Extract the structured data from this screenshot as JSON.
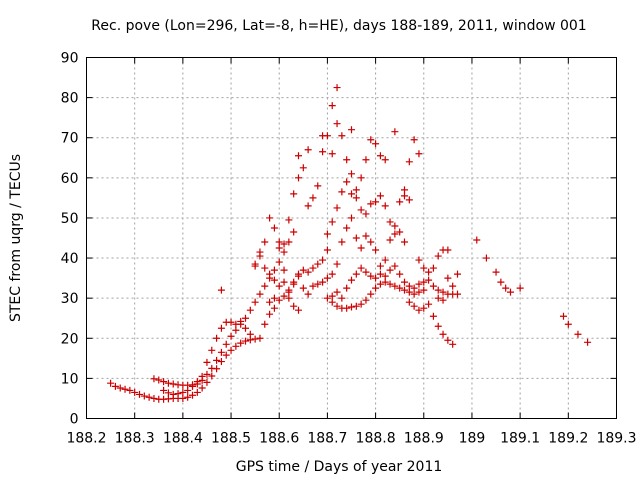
{
  "chart_data": {
    "type": "scatter",
    "title": "Rec. pove (Lon=296, Lat=-8, h=HE), days 188-189, 2011, window 001",
    "xlabel": "GPS time / Days of year 2011",
    "ylabel": "STEC from uqrg / TECUs",
    "xlim": [
      188.2,
      189.3
    ],
    "ylim": [
      0,
      90
    ],
    "xticks": [
      188.2,
      188.3,
      188.4,
      188.5,
      188.6,
      188.7,
      188.8,
      188.9,
      189.0,
      189.1,
      189.2,
      189.3
    ],
    "xtick_labels": [
      "188.2",
      "188.3",
      "188.4",
      "188.5",
      "188.6",
      "188.7",
      "188.8",
      "188.9",
      "189",
      "189.1",
      "189.2",
      "189.3"
    ],
    "yticks": [
      0,
      10,
      20,
      30,
      40,
      50,
      60,
      70,
      80,
      90
    ],
    "ytick_labels": [
      "0",
      "10",
      "20",
      "30",
      "40",
      "50",
      "60",
      "70",
      "80",
      "90"
    ],
    "grid": true,
    "legend": "none",
    "marker": "plus",
    "color": "#cc0000",
    "points": [
      [
        188.25,
        8.8
      ],
      [
        188.26,
        8.0
      ],
      [
        188.27,
        7.6
      ],
      [
        188.28,
        7.3
      ],
      [
        188.29,
        7.0
      ],
      [
        188.3,
        6.5
      ],
      [
        188.31,
        6.0
      ],
      [
        188.32,
        5.6
      ],
      [
        188.33,
        5.3
      ],
      [
        188.34,
        5.0
      ],
      [
        188.35,
        4.8
      ],
      [
        188.36,
        4.8
      ],
      [
        188.37,
        4.9
      ],
      [
        188.38,
        5.0
      ],
      [
        188.39,
        5.0
      ],
      [
        188.4,
        5.0
      ],
      [
        188.41,
        5.3
      ],
      [
        188.42,
        5.8
      ],
      [
        188.43,
        6.5
      ],
      [
        188.44,
        7.6
      ],
      [
        188.45,
        9.0
      ],
      [
        188.46,
        10.6
      ],
      [
        188.47,
        12.4
      ],
      [
        188.48,
        14.2
      ],
      [
        188.49,
        15.8
      ],
      [
        188.5,
        17.0
      ],
      [
        188.51,
        18.0
      ],
      [
        188.52,
        18.8
      ],
      [
        188.53,
        19.3
      ],
      [
        188.54,
        19.6
      ],
      [
        188.55,
        19.8
      ],
      [
        188.56,
        20.0
      ],
      [
        188.34,
        9.9
      ],
      [
        188.35,
        9.6
      ],
      [
        188.36,
        9.2
      ],
      [
        188.37,
        8.8
      ],
      [
        188.38,
        8.6
      ],
      [
        188.39,
        8.4
      ],
      [
        188.4,
        8.3
      ],
      [
        188.41,
        8.3
      ],
      [
        188.42,
        8.4
      ],
      [
        188.43,
        8.6
      ],
      [
        188.44,
        9.5
      ],
      [
        188.45,
        11.0
      ],
      [
        188.46,
        12.5
      ],
      [
        188.47,
        14.5
      ],
      [
        188.48,
        16.5
      ],
      [
        188.49,
        18.5
      ],
      [
        188.5,
        20.5
      ],
      [
        188.51,
        22.0
      ],
      [
        188.52,
        23.5
      ],
      [
        188.53,
        25.0
      ],
      [
        188.54,
        27.0
      ],
      [
        188.55,
        29.0
      ],
      [
        188.56,
        31.0
      ],
      [
        188.57,
        33.0
      ],
      [
        188.58,
        35.0
      ],
      [
        188.59,
        37.0
      ],
      [
        188.6,
        39.0
      ],
      [
        188.61,
        41.5
      ],
      [
        188.62,
        44.0
      ],
      [
        188.63,
        46.5
      ],
      [
        188.36,
        7.0
      ],
      [
        188.37,
        6.4
      ],
      [
        188.38,
        6.0
      ],
      [
        188.39,
        6.2
      ],
      [
        188.4,
        6.5
      ],
      [
        188.41,
        7.0
      ],
      [
        188.42,
        8.0
      ],
      [
        188.43,
        9.2
      ],
      [
        188.44,
        10.5
      ],
      [
        188.45,
        14.0
      ],
      [
        188.46,
        17.0
      ],
      [
        188.47,
        20.0
      ],
      [
        188.48,
        22.5
      ],
      [
        188.49,
        24.0
      ],
      [
        188.5,
        24.0
      ],
      [
        188.51,
        23.5
      ],
      [
        188.52,
        24.2
      ],
      [
        188.53,
        22.5
      ],
      [
        188.54,
        21.0
      ],
      [
        188.48,
        32.0
      ],
      [
        188.55,
        38.5
      ],
      [
        188.56,
        41.5
      ],
      [
        188.57,
        44.0
      ],
      [
        188.58,
        50.0
      ],
      [
        188.59,
        47.5
      ],
      [
        188.6,
        44.0
      ],
      [
        188.61,
        37.0
      ],
      [
        188.62,
        30.0
      ],
      [
        188.63,
        28.0
      ],
      [
        188.64,
        27.0
      ],
      [
        188.58,
        29.0
      ],
      [
        188.59,
        30.0
      ],
      [
        188.6,
        33.0
      ],
      [
        188.61,
        34.0
      ],
      [
        188.62,
        31.5
      ],
      [
        188.63,
        33.5
      ],
      [
        188.64,
        35.5
      ],
      [
        188.65,
        32.5
      ],
      [
        188.66,
        31.0
      ],
      [
        188.67,
        33.0
      ],
      [
        188.68,
        33.5
      ],
      [
        188.69,
        34.0
      ],
      [
        188.7,
        35.0
      ],
      [
        188.57,
        23.5
      ],
      [
        188.58,
        26.0
      ],
      [
        188.59,
        27.5
      ],
      [
        188.6,
        29.5
      ],
      [
        188.61,
        30.5
      ],
      [
        188.62,
        32.0
      ],
      [
        188.63,
        34.0
      ],
      [
        188.64,
        36.0
      ],
      [
        188.65,
        37.0
      ],
      [
        188.66,
        36.5
      ],
      [
        188.67,
        37.5
      ],
      [
        188.68,
        38.5
      ],
      [
        188.69,
        39.5
      ],
      [
        188.7,
        42.0
      ],
      [
        188.55,
        38.0
      ],
      [
        188.56,
        40.5
      ],
      [
        188.57,
        37.5
      ],
      [
        188.58,
        36.0
      ],
      [
        188.59,
        34.5
      ],
      [
        188.6,
        42.5
      ],
      [
        188.61,
        43.5
      ],
      [
        188.62,
        49.5
      ],
      [
        188.63,
        56.0
      ],
      [
        188.64,
        60.0
      ],
      [
        188.64,
        65.5
      ],
      [
        188.65,
        62.5
      ],
      [
        188.66,
        53.0
      ],
      [
        188.67,
        55.0
      ],
      [
        188.66,
        67.0
      ],
      [
        188.68,
        58.0
      ],
      [
        188.69,
        66.5
      ],
      [
        188.69,
        70.5
      ],
      [
        188.7,
        70.5
      ],
      [
        188.71,
        66.0
      ],
      [
        188.71,
        78.0
      ],
      [
        188.72,
        82.5
      ],
      [
        188.72,
        73.5
      ],
      [
        188.73,
        70.5
      ],
      [
        188.74,
        64.5
      ],
      [
        188.75,
        72.0
      ],
      [
        188.75,
        61.0
      ],
      [
        188.76,
        57.0
      ],
      [
        188.77,
        60.0
      ],
      [
        188.78,
        64.5
      ],
      [
        188.79,
        69.5
      ],
      [
        188.8,
        68.5
      ],
      [
        188.81,
        65.5
      ],
      [
        188.82,
        64.5
      ],
      [
        188.84,
        71.5
      ],
      [
        188.86,
        57.0
      ],
      [
        188.87,
        64.0
      ],
      [
        188.88,
        69.5
      ],
      [
        188.89,
        66.0
      ],
      [
        188.7,
        46.0
      ],
      [
        188.71,
        49.0
      ],
      [
        188.72,
        52.5
      ],
      [
        188.73,
        56.5
      ],
      [
        188.74,
        59.0
      ],
      [
        188.75,
        56.0
      ],
      [
        188.76,
        55.0
      ],
      [
        188.77,
        52.0
      ],
      [
        188.78,
        51.0
      ],
      [
        188.79,
        53.5
      ],
      [
        188.8,
        54.0
      ],
      [
        188.81,
        55.5
      ],
      [
        188.82,
        53.0
      ],
      [
        188.83,
        49.0
      ],
      [
        188.84,
        46.0
      ],
      [
        188.85,
        54.0
      ],
      [
        188.86,
        55.5
      ],
      [
        188.87,
        54.5
      ],
      [
        188.71,
        36.0
      ],
      [
        188.72,
        38.5
      ],
      [
        188.73,
        44.0
      ],
      [
        188.74,
        47.5
      ],
      [
        188.75,
        50.0
      ],
      [
        188.76,
        45.0
      ],
      [
        188.77,
        42.5
      ],
      [
        188.78,
        45.5
      ],
      [
        188.79,
        44.0
      ],
      [
        188.8,
        42.0
      ],
      [
        188.81,
        38.0
      ],
      [
        188.82,
        39.5
      ],
      [
        188.83,
        44.5
      ],
      [
        188.84,
        48.0
      ],
      [
        188.85,
        46.5
      ],
      [
        188.86,
        44.0
      ],
      [
        188.7,
        30.0
      ],
      [
        188.71,
        29.0
      ],
      [
        188.72,
        28.0
      ],
      [
        188.73,
        27.5
      ],
      [
        188.74,
        27.5
      ],
      [
        188.75,
        27.8
      ],
      [
        188.76,
        28.0
      ],
      [
        188.77,
        28.5
      ],
      [
        188.78,
        29.5
      ],
      [
        188.79,
        31.0
      ],
      [
        188.8,
        32.5
      ],
      [
        188.81,
        33.5
      ],
      [
        188.82,
        34.0
      ],
      [
        188.83,
        33.5
      ],
      [
        188.84,
        33.0
      ],
      [
        188.85,
        32.5
      ],
      [
        188.86,
        32.0
      ],
      [
        188.87,
        31.5
      ],
      [
        188.88,
        31.0
      ],
      [
        188.89,
        31.5
      ],
      [
        188.9,
        32.0
      ],
      [
        188.71,
        30.5
      ],
      [
        188.72,
        31.5
      ],
      [
        188.73,
        30.0
      ],
      [
        188.74,
        32.5
      ],
      [
        188.75,
        34.5
      ],
      [
        188.76,
        36.0
      ],
      [
        188.77,
        37.5
      ],
      [
        188.78,
        36.5
      ],
      [
        188.79,
        35.5
      ],
      [
        188.8,
        35.0
      ],
      [
        188.81,
        36.0
      ],
      [
        188.82,
        35.5
      ],
      [
        188.83,
        37.0
      ],
      [
        188.84,
        38.0
      ],
      [
        188.85,
        36.0
      ],
      [
        188.86,
        34.0
      ],
      [
        188.87,
        33.0
      ],
      [
        188.88,
        32.5
      ],
      [
        188.89,
        33.5
      ],
      [
        188.9,
        34.0
      ],
      [
        188.91,
        34.5
      ],
      [
        188.87,
        29.0
      ],
      [
        188.88,
        28.0
      ],
      [
        188.89,
        27.0
      ],
      [
        188.9,
        27.5
      ],
      [
        188.91,
        28.5
      ],
      [
        188.92,
        25.5
      ],
      [
        188.93,
        23.0
      ],
      [
        188.94,
        21.0
      ],
      [
        188.95,
        19.5
      ],
      [
        188.96,
        18.5
      ],
      [
        188.89,
        39.5
      ],
      [
        188.9,
        37.5
      ],
      [
        188.91,
        36.5
      ],
      [
        188.92,
        37.5
      ],
      [
        188.93,
        40.5
      ],
      [
        188.94,
        42.0
      ],
      [
        188.95,
        42.0
      ],
      [
        188.92,
        33.0
      ],
      [
        188.93,
        32.0
      ],
      [
        188.94,
        31.5
      ],
      [
        188.95,
        31.0
      ],
      [
        188.96,
        31.0
      ],
      [
        188.97,
        31.0
      ],
      [
        188.97,
        36.0
      ],
      [
        188.93,
        30.0
      ],
      [
        188.94,
        29.5
      ],
      [
        188.95,
        35.0
      ],
      [
        188.96,
        33.0
      ],
      [
        189.01,
        44.5
      ],
      [
        189.03,
        40.0
      ],
      [
        189.05,
        36.5
      ],
      [
        189.06,
        34.0
      ],
      [
        189.07,
        32.5
      ],
      [
        189.08,
        31.5
      ],
      [
        189.1,
        32.5
      ],
      [
        189.19,
        25.5
      ],
      [
        189.2,
        23.5
      ],
      [
        189.22,
        21.0
      ],
      [
        189.24,
        19.0
      ]
    ]
  }
}
